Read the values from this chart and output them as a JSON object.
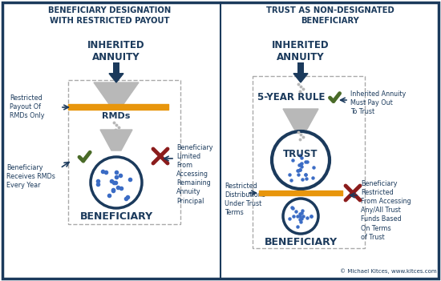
{
  "bg_color": "#ffffff",
  "border_color": "#1b3a5c",
  "divider_color": "#1b3a5c",
  "title_left": "BENEFICIARY DESIGNATION\nWITH RESTRICTED PAYOUT",
  "title_right": "TRUST AS NON-DESIGNATED\nBENEFICIARY",
  "title_color": "#1b3a5c",
  "arrow_dark": "#1b3a5c",
  "funnel_color": "#b8b8b8",
  "orange_color": "#e8960c",
  "check_color": "#4a6b28",
  "cross_color": "#8b1c1c",
  "dot_color": "#3b6cc5",
  "dashed_color": "#aaaaaa",
  "copyright": "© Michael Kitces, www.kitces.com"
}
